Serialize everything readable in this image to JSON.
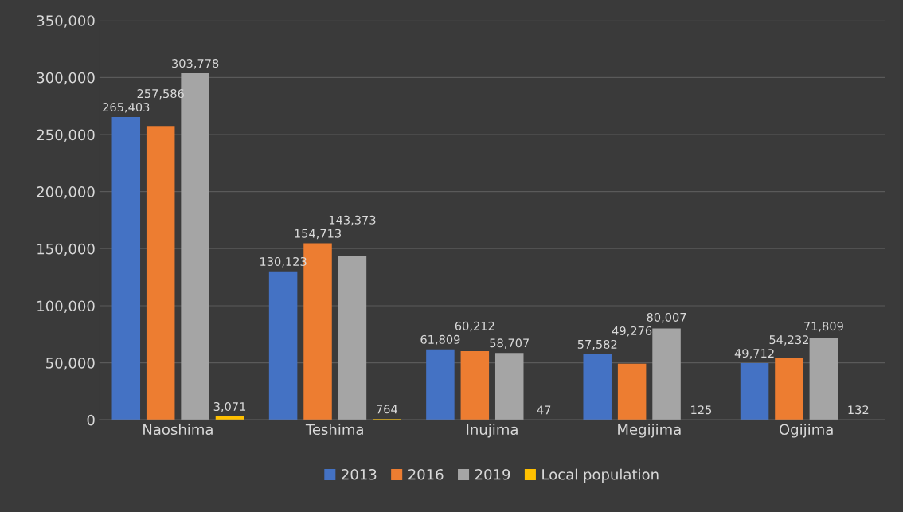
{
  "chart_data": {
    "type": "bar",
    "categories": [
      "Naoshima",
      "Teshima",
      "Inujima",
      "Megijima",
      "Ogijima"
    ],
    "series": [
      {
        "name": "2013",
        "color": "#4472c4",
        "values": [
          265403,
          130123,
          61809,
          57582,
          49712
        ],
        "value_labels": [
          "265,403",
          "130,123",
          "61,809",
          "57,582",
          "49,712"
        ]
      },
      {
        "name": "2016",
        "color": "#ed7d31",
        "values": [
          257586,
          154713,
          60212,
          49276,
          54232
        ],
        "value_labels": [
          "257,586",
          "154,713",
          "60,212",
          "49,276",
          "54,232"
        ]
      },
      {
        "name": "2019",
        "color": "#a5a5a5",
        "values": [
          303778,
          143373,
          58707,
          80007,
          71809
        ],
        "value_labels": [
          "303,778",
          "143,373",
          "58,707",
          "80,007",
          "71,809"
        ]
      },
      {
        "name": "Local population",
        "color": "#ffc000",
        "values": [
          3071,
          764,
          47,
          125,
          132
        ],
        "value_labels": [
          "3,071",
          "764",
          "47",
          "125",
          "132"
        ]
      }
    ],
    "ylim": [
      0,
      350000
    ],
    "yticks": [
      {
        "value": 0,
        "label": "0"
      },
      {
        "value": 50000,
        "label": "50,000"
      },
      {
        "value": 100000,
        "label": "100,000"
      },
      {
        "value": 150000,
        "label": "150,000"
      },
      {
        "value": 200000,
        "label": "200,000"
      },
      {
        "value": 250000,
        "label": "250,000"
      },
      {
        "value": 300000,
        "label": "300,000"
      },
      {
        "value": 350000,
        "label": "350,000"
      }
    ],
    "grid": "y",
    "legend": "bottom"
  }
}
